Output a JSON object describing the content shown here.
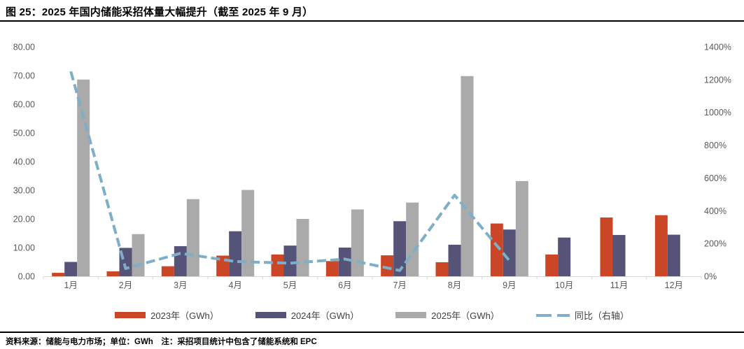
{
  "header": {
    "title": "图 25：2025 年国内储能采招体量大幅提升（截至 2025 年 9 月）"
  },
  "footer": {
    "source": "资料来源：储能与电力市场；单位：GWh　注：采招项目统计中包含了储能系统和 EPC"
  },
  "colors": {
    "bar_2023": "#CB4527",
    "bar_2024": "#555377",
    "bar_2025": "#ABAAAA",
    "yoy_line": "#7FAEC8",
    "axis_text": "#595959",
    "axis_line": "#D6D6D6",
    "legend_text": "#404040"
  },
  "chart_data": {
    "type": "bar",
    "subtype": "grouped-bars-with-dashed-line-overlay",
    "title": "图 25：2025 年国内储能采招体量大幅提升（截至 2025 年 9 月）",
    "categories": [
      "1月",
      "2月",
      "3月",
      "4月",
      "5月",
      "6月",
      "7月",
      "8月",
      "9月",
      "10月",
      "11月",
      "12月"
    ],
    "series": [
      {
        "name": "2023年（GWh）",
        "type": "bar",
        "axis": "left",
        "color": "#CB4527",
        "values": [
          1.2,
          1.7,
          3.5,
          7.2,
          7.6,
          5.3,
          7.3,
          4.9,
          18.4,
          7.6,
          20.5,
          21.3
        ]
      },
      {
        "name": "2024年（GWh）",
        "type": "bar",
        "axis": "left",
        "color": "#555377",
        "values": [
          5.0,
          9.9,
          10.5,
          15.7,
          10.7,
          10.0,
          19.2,
          11.0,
          16.3,
          13.5,
          14.4,
          14.5
        ]
      },
      {
        "name": "2025年（GWh）",
        "type": "bar",
        "axis": "left",
        "color": "#ABAAAA",
        "values": [
          68.6,
          14.7,
          26.9,
          30.1,
          20.0,
          23.3,
          25.7,
          69.8,
          33.2,
          null,
          null,
          null
        ]
      },
      {
        "name": "同比（右轴）",
        "type": "line",
        "dashed": true,
        "axis": "right",
        "color": "#7FAEC8",
        "values": [
          1250,
          47,
          140,
          90,
          80,
          105,
          35,
          495,
          95,
          null,
          null,
          null
        ]
      }
    ],
    "left_axis": {
      "min": 0,
      "max": 80,
      "step": 10,
      "tick_format": "two-decimals",
      "ticks": [
        "0.00",
        "10.00",
        "20.00",
        "30.00",
        "40.00",
        "50.00",
        "60.00",
        "70.00",
        "80.00"
      ]
    },
    "right_axis": {
      "min": 0,
      "max": 1400,
      "step": 200,
      "tick_format": "percent",
      "ticks": [
        "0%",
        "200%",
        "400%",
        "600%",
        "800%",
        "1000%",
        "1200%",
        "1400%"
      ]
    },
    "grid": false,
    "legend_position": "bottom"
  }
}
